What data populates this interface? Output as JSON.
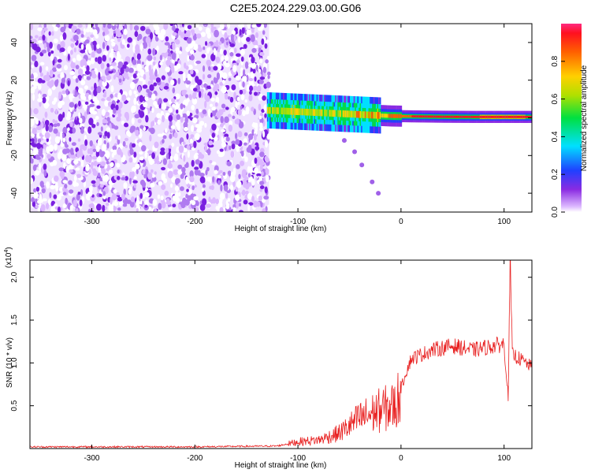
{
  "title": "C2E5.2024.229.03.00.G06",
  "chart_data": [
    {
      "type": "heatmap",
      "xlabel": "Height of straight line (km)",
      "ylabel": "Frequency (Hz)",
      "xlim": [
        -360,
        127
      ],
      "ylim": [
        -50,
        50
      ],
      "xticks": [
        -300,
        -200,
        -100,
        0,
        100
      ],
      "yticks": [
        -40,
        -20,
        0,
        20,
        40
      ],
      "colorbar": {
        "label": "Normalized spectral amplitude",
        "ticks": [
          "0.0",
          "0.2",
          "0.4",
          "0.6",
          "0.8"
        ],
        "range": [
          0,
          1
        ]
      },
      "noise_region_x": [
        -360,
        -128
      ],
      "signal_band": [
        {
          "x": -130,
          "freq": 4,
          "amp": 0.45
        },
        {
          "x": -110,
          "freq": 3.5,
          "amp": 0.5
        },
        {
          "x": -90,
          "freq": 3,
          "amp": 0.45
        },
        {
          "x": -70,
          "freq": 2.5,
          "amp": 0.45
        },
        {
          "x": -50,
          "freq": 2,
          "amp": 0.5
        },
        {
          "x": -30,
          "freq": 1.5,
          "amp": 0.55
        },
        {
          "x": -10,
          "freq": 1,
          "amp": 0.75
        },
        {
          "x": 10,
          "freq": 0.8,
          "amp": 0.85
        },
        {
          "x": 40,
          "freq": 0.6,
          "amp": 0.9
        },
        {
          "x": 70,
          "freq": 0.5,
          "amp": 0.9
        },
        {
          "x": 100,
          "freq": 0.5,
          "amp": 0.95
        },
        {
          "x": 125,
          "freq": 0.5,
          "amp": 0.9
        }
      ],
      "secondary_track": [
        {
          "x": -55,
          "freq": -12
        },
        {
          "x": -45,
          "freq": -18
        },
        {
          "x": -38,
          "freq": -25
        },
        {
          "x": -28,
          "freq": -34
        },
        {
          "x": -22,
          "freq": -40
        }
      ]
    },
    {
      "type": "line",
      "xlabel": "Height of straight line (km)",
      "ylabel": "SNR (10 * v/v)",
      "y_multiplier": "(x10",
      "y_multiplier_exp": "4",
      "y_multiplier_close": ")",
      "xlim": [
        -360,
        127
      ],
      "ylim": [
        0,
        2.2
      ],
      "xticks": [
        -300,
        -200,
        -100,
        0,
        100
      ],
      "yticks": [
        0.5,
        1.0,
        1.5,
        2.0
      ],
      "ytick_labels": [
        "0.5",
        "1.0",
        "1.5",
        "2.0"
      ],
      "color": "#e82020",
      "series": [
        {
          "values_envelope": [
            {
              "x": -360,
              "y": 0.02
            },
            {
              "x": -300,
              "y": 0.02
            },
            {
              "x": -200,
              "y": 0.02
            },
            {
              "x": -120,
              "y": 0.03
            },
            {
              "x": -100,
              "y": 0.08
            },
            {
              "x": -80,
              "y": 0.1
            },
            {
              "x": -60,
              "y": 0.18
            },
            {
              "x": -40,
              "y": 0.35
            },
            {
              "x": -20,
              "y": 0.45
            },
            {
              "x": -5,
              "y": 0.5
            },
            {
              "x": 5,
              "y": 0.9
            },
            {
              "x": 10,
              "y": 1.05
            },
            {
              "x": 30,
              "y": 1.15
            },
            {
              "x": 50,
              "y": 1.2
            },
            {
              "x": 70,
              "y": 1.15
            },
            {
              "x": 90,
              "y": 1.2
            },
            {
              "x": 100,
              "y": 1.22
            },
            {
              "x": 104,
              "y": 0.6
            },
            {
              "x": 106,
              "y": 2.2
            },
            {
              "x": 108,
              "y": 1.1
            },
            {
              "x": 115,
              "y": 1.05
            },
            {
              "x": 127,
              "y": 0.95
            }
          ]
        }
      ]
    }
  ]
}
